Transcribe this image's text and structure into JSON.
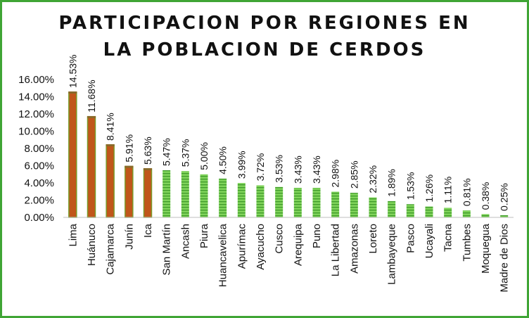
{
  "chart_data": {
    "type": "bar",
    "title_lines": [
      "PARTICIPACION POR REGIONES EN",
      "LA POBLACION DE CERDOS"
    ],
    "categories": [
      "Lima",
      "Huánuco",
      "Cajamarca",
      "Junín",
      "Ica",
      "San Martín",
      "Ancash",
      "Piura",
      "Huancavelica",
      "Apurímac",
      "Ayacucho",
      "Cusco",
      "Arequipa",
      "Puno",
      "La Libertad",
      "Amazonas",
      "Loreto",
      "Lambayeque",
      "Pasco",
      "Ucayali",
      "Tacna",
      "Tumbes",
      "Moquegua",
      "Madre de Dios"
    ],
    "values": [
      14.53,
      11.68,
      8.41,
      5.91,
      5.63,
      5.47,
      5.37,
      5.0,
      4.5,
      3.99,
      3.72,
      3.53,
      3.43,
      3.43,
      2.98,
      2.85,
      2.32,
      1.89,
      1.53,
      1.26,
      1.11,
      0.81,
      0.38,
      0.25
    ],
    "data_labels": [
      "14.53%",
      "11.68%",
      "8.41%",
      "5.91%",
      "5.63%",
      "5.47%",
      "5.37%",
      "5.00%",
      "4.50%",
      "3.99%",
      "3.72%",
      "3.53%",
      "3.43%",
      "3.43%",
      "2.98%",
      "2.85%",
      "2.32%",
      "1.89%",
      "1.53%",
      "1.26%",
      "1.11%",
      "0.81%",
      "0.38%",
      "0.25%"
    ],
    "y_ticks": [
      "0.00%",
      "2.00%",
      "4.00%",
      "6.00%",
      "8.00%",
      "10.00%",
      "12.00%",
      "14.00%",
      "16.00%"
    ],
    "ylim": [
      0,
      16
    ],
    "highlight_count": 5,
    "colors": {
      "highlight": "#c0561a",
      "highlight_edge": "#7a9a2a",
      "normal": "#6cc24a",
      "normal_stripe": "#3f9a2a",
      "frame": "#3fa535"
    },
    "grid": false,
    "legend": "none"
  }
}
